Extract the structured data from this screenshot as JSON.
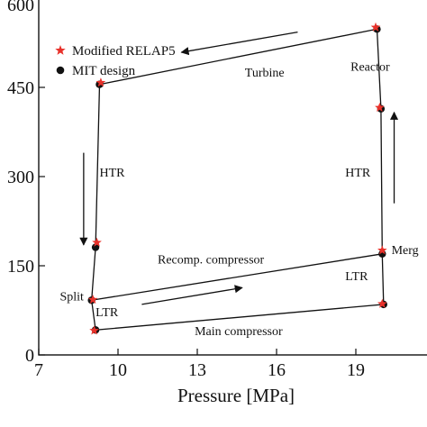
{
  "chart_data": {
    "type": "line",
    "title": "",
    "xlabel": "Pressure [MPa]",
    "ylabel": "",
    "xlim": [
      7,
      22
    ],
    "ylim": [
      0,
      600
    ],
    "x_ticks": [
      "7",
      "10",
      "13",
      "16",
      "19"
    ],
    "y_ticks": [
      "0",
      "150",
      "300",
      "450",
      "600"
    ],
    "grid": false,
    "legend_position": "top-left",
    "series": [
      {
        "name": "Modified RELAP5",
        "marker": "star",
        "color": "#e8312a",
        "points": [
          {
            "x": 9.35,
            "y": 458
          },
          {
            "x": 19.75,
            "y": 551
          },
          {
            "x": 19.9,
            "y": 416
          },
          {
            "x": 20.0,
            "y": 176
          },
          {
            "x": 20.0,
            "y": 86
          },
          {
            "x": 9.1,
            "y": 41
          },
          {
            "x": 9.05,
            "y": 93
          },
          {
            "x": 9.2,
            "y": 189
          }
        ]
      },
      {
        "name": "MIT design",
        "marker": "circle",
        "color": "#111111",
        "points": [
          {
            "x": 9.3,
            "y": 455
          },
          {
            "x": 19.8,
            "y": 548
          },
          {
            "x": 19.95,
            "y": 414
          },
          {
            "x": 20.0,
            "y": 170
          },
          {
            "x": 20.05,
            "y": 85
          },
          {
            "x": 9.15,
            "y": 42
          },
          {
            "x": 9.0,
            "y": 92
          },
          {
            "x": 9.15,
            "y": 181
          }
        ]
      }
    ],
    "cycle_path": [
      {
        "x": 9.3,
        "y": 455
      },
      {
        "x": 19.8,
        "y": 548
      },
      {
        "x": 19.95,
        "y": 414
      },
      {
        "x": 20.0,
        "y": 170
      },
      {
        "x": 20.05,
        "y": 85
      },
      {
        "x": 9.15,
        "y": 42
      },
      {
        "x": 9.0,
        "y": 92
      },
      {
        "x": 9.15,
        "y": 181
      },
      {
        "x": 9.3,
        "y": 455
      }
    ],
    "recomp_line": [
      {
        "x": 9.0,
        "y": 92
      },
      {
        "x": 20.0,
        "y": 170
      }
    ],
    "annotations": [
      {
        "text": "Turbine",
        "x": 14.8,
        "y": 468
      },
      {
        "text": "Reactor",
        "x": 18.8,
        "y": 478
      },
      {
        "text": "HTR",
        "x": 9.3,
        "y": 300
      },
      {
        "text": "HTR",
        "x": 18.6,
        "y": 300
      },
      {
        "text": "Recomp. compressor",
        "x": 11.5,
        "y": 154
      },
      {
        "text": "Merg",
        "x": 20.35,
        "y": 170
      },
      {
        "text": "LTR",
        "x": 18.6,
        "y": 126
      },
      {
        "text": "Split",
        "x": 7.8,
        "y": 92
      },
      {
        "text": "LTR",
        "x": 9.15,
        "y": 65
      },
      {
        "text": "Main compressor",
        "x": 12.9,
        "y": 33
      }
    ],
    "arrows": [
      {
        "from": [
          16.8,
          543
        ],
        "to": [
          12.4,
          509
        ]
      },
      {
        "from": [
          8.7,
          340
        ],
        "to": [
          8.7,
          185
        ]
      },
      {
        "from": [
          10.9,
          85
        ],
        "to": [
          14.7,
          113
        ]
      },
      {
        "from": [
          20.45,
          255
        ],
        "to": [
          20.45,
          408
        ]
      }
    ]
  }
}
